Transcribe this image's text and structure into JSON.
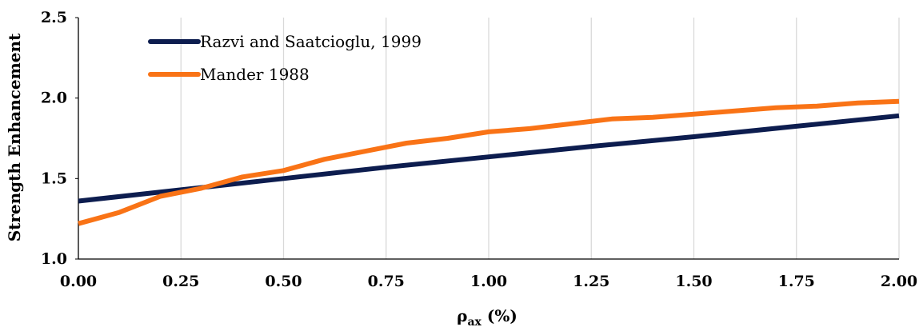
{
  "chart_data": {
    "type": "line",
    "xlabel": "ρ",
    "xlabel_sub": "ax",
    "xlabel_unit": " (%)",
    "ylabel": "Strength Enhancement",
    "xlim": [
      0,
      2
    ],
    "ylim": [
      1.0,
      2.5
    ],
    "x_ticks": [
      "0.00",
      "0.25",
      "0.50",
      "0.75",
      "1.00",
      "1.25",
      "1.50",
      "1.75",
      "2.00"
    ],
    "y_ticks": [
      "1.0",
      "1.5",
      "2.0",
      "2.5"
    ],
    "grid": "vertical",
    "legend_position": "top-left",
    "series": [
      {
        "name": "Razvi and Saatcioglu, 1999",
        "color": "#0d1d4f",
        "x": [
          0,
          0.25,
          0.5,
          0.75,
          1.0,
          1.25,
          1.5,
          1.75,
          2.0
        ],
        "y": [
          1.36,
          1.43,
          1.5,
          1.57,
          1.635,
          1.7,
          1.76,
          1.825,
          1.89
        ]
      },
      {
        "name": "Mander 1988",
        "color": "#f97316",
        "x": [
          0,
          0.1,
          0.2,
          0.3,
          0.4,
          0.5,
          0.6,
          0.7,
          0.8,
          0.9,
          1.0,
          1.1,
          1.2,
          1.3,
          1.4,
          1.5,
          1.6,
          1.7,
          1.8,
          1.9,
          2.0
        ],
        "y": [
          1.22,
          1.29,
          1.39,
          1.44,
          1.51,
          1.55,
          1.62,
          1.67,
          1.72,
          1.75,
          1.79,
          1.81,
          1.84,
          1.87,
          1.88,
          1.9,
          1.92,
          1.94,
          1.95,
          1.97,
          1.98
        ]
      }
    ]
  }
}
